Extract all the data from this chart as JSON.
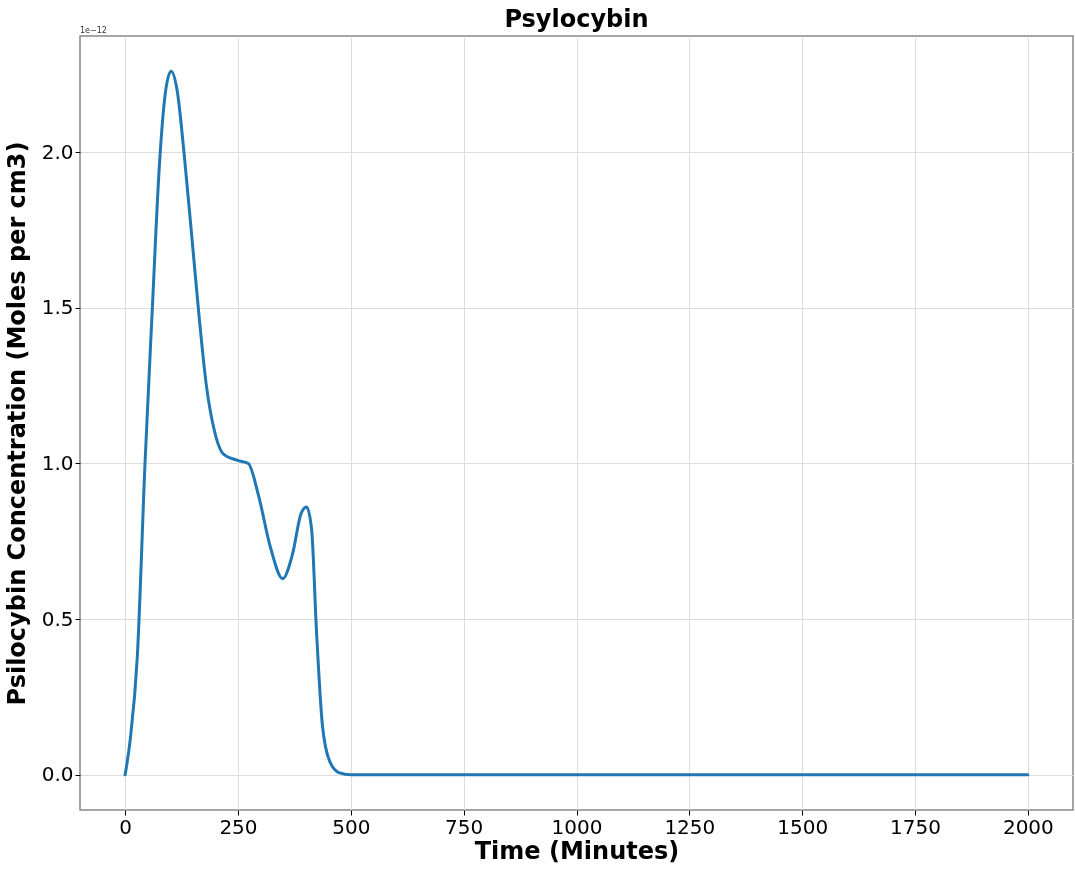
{
  "chart_data": {
    "type": "line",
    "title": "Psylocybin",
    "xlabel": "Time (Minutes)",
    "ylabel": "Psilocybin Concentration (Moles per cm3)",
    "annotations": [
      "1e−12"
    ],
    "x": [
      0,
      11,
      27,
      44,
      60,
      76,
      90,
      102,
      115,
      131,
      147,
      164,
      180,
      197,
      218,
      249,
      273,
      295,
      322,
      349,
      371,
      390,
      402,
      413,
      424,
      437,
      453,
      475,
      500,
      2000
    ],
    "series": [
      {
        "color": "#1f77b4",
        "values": [
          0,
          0.11,
          0.38,
          1.0,
          1.49,
          1.96,
          2.2,
          2.26,
          2.2,
          1.99,
          1.74,
          1.47,
          1.25,
          1.11,
          1.03,
          1.01,
          1.0,
          0.9,
          0.73,
          0.63,
          0.71,
          0.84,
          0.86,
          0.79,
          0.46,
          0.16,
          0.044,
          0.006,
          0,
          0
        ]
      }
    ],
    "xlim": [
      -100,
      2100
    ],
    "ylim": [
      -0.113,
      2.373
    ],
    "xticks": [
      0,
      250,
      500,
      750,
      1000,
      1250,
      1500,
      1750,
      2000
    ],
    "yticks": [
      {
        "value": 0,
        "label": "0.0"
      },
      0.5,
      {
        "value": 1,
        "label": "1.0"
      },
      1.5,
      {
        "value": 2,
        "label": "2.0"
      }
    ],
    "grid": true,
    "line_style": "solid",
    "marker": "none"
  }
}
